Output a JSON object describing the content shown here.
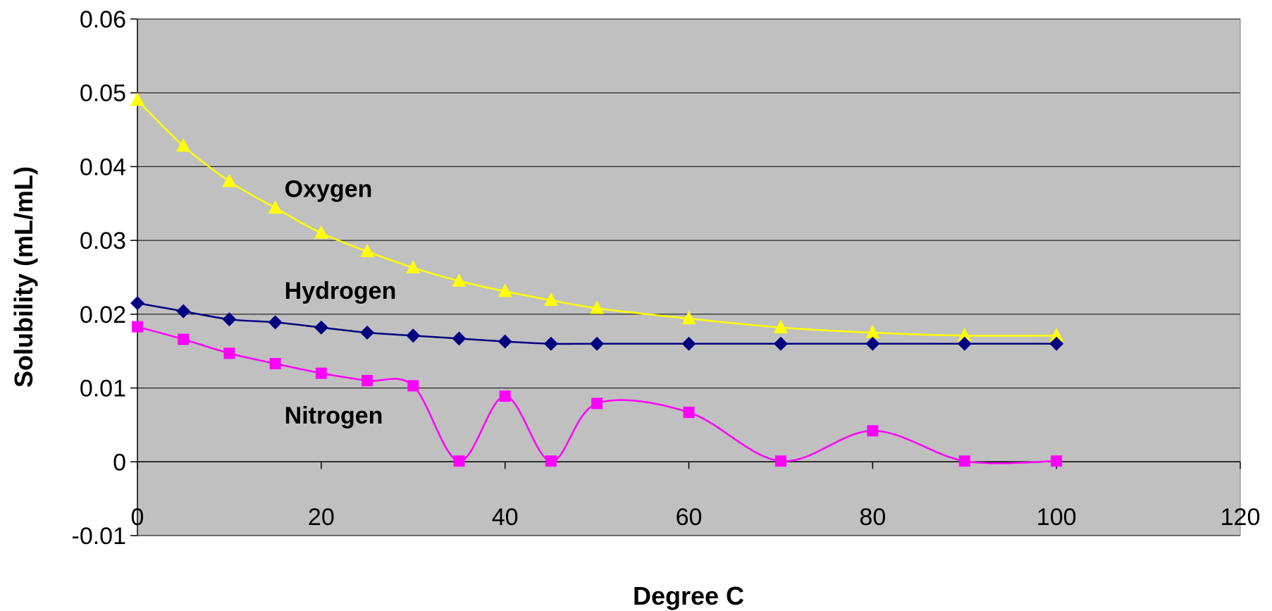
{
  "chart_data": {
    "type": "line",
    "title": "",
    "xlabel": "Degree C",
    "ylabel": "Solubility (mL/mL)",
    "xlim": [
      0,
      120
    ],
    "ylim": [
      -0.01,
      0.06
    ],
    "x_ticks": [
      "0",
      "20",
      "40",
      "60",
      "80",
      "100",
      "120"
    ],
    "y_ticks": [
      "-0.01",
      "0",
      "0.01",
      "0.02",
      "0.03",
      "0.04",
      "0.05",
      "0.06"
    ],
    "grid": "horizontal",
    "plot_background": "#c0c0c0",
    "legend": "none",
    "series": [
      {
        "name": "Oxygen",
        "color": "#ffff00",
        "marker": "triangle",
        "x": [
          0,
          5,
          10,
          15,
          20,
          25,
          30,
          35,
          40,
          45,
          50,
          60,
          70,
          80,
          90,
          100
        ],
        "y": [
          0.049,
          0.0428,
          0.038,
          0.0344,
          0.031,
          0.0285,
          0.0263,
          0.0245,
          0.0231,
          0.0219,
          0.0208,
          0.0194,
          0.0182,
          0.0175,
          0.0171,
          0.0171
        ]
      },
      {
        "name": "Hydrogen",
        "color": "#000080",
        "marker": "diamond",
        "x": [
          0,
          5,
          10,
          15,
          20,
          25,
          30,
          35,
          40,
          45,
          50,
          60,
          70,
          80,
          90,
          100
        ],
        "y": [
          0.0215,
          0.0204,
          0.0193,
          0.0189,
          0.0182,
          0.0175,
          0.0171,
          0.0167,
          0.0163,
          0.016,
          0.016,
          0.016,
          0.016,
          0.016,
          0.016,
          0.016
        ]
      },
      {
        "name": "Nitrogen",
        "color": "#ff00ff",
        "marker": "square",
        "x": [
          0,
          5,
          10,
          15,
          20,
          25,
          30,
          35,
          40,
          45,
          50,
          60,
          70,
          80,
          90,
          100
        ],
        "y": [
          0.0183,
          0.0166,
          0.0147,
          0.0133,
          0.012,
          0.011,
          0.0103,
          0.0001,
          0.0089,
          0.0001,
          0.0079,
          0.0067,
          0.0001,
          0.0042,
          0.0001,
          0.0001
        ]
      }
    ]
  }
}
